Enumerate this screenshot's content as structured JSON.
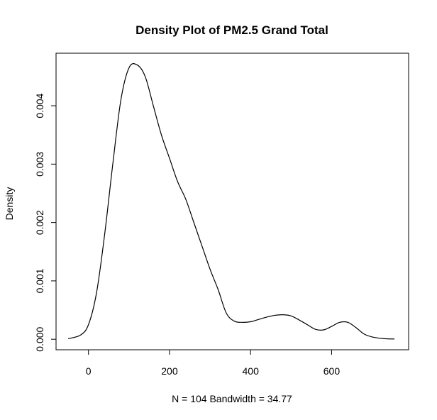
{
  "chart_data": {
    "type": "line",
    "title": "Density Plot of PM2.5 Grand Total",
    "xlabel": "N = 104   Bandwidth = 34.77",
    "ylabel": "Density",
    "xlim": [
      -80,
      790
    ],
    "ylim": [
      -0.00018,
      0.0049
    ],
    "x_ticks": [
      0,
      200,
      400,
      600
    ],
    "x_tick_labels": [
      "0",
      "200",
      "400",
      "600"
    ],
    "y_ticks": [
      0.0,
      0.001,
      0.002,
      0.003,
      0.004
    ],
    "y_tick_labels": [
      "0.000",
      "0.001",
      "0.002",
      "0.003",
      "0.004"
    ],
    "grid": false,
    "series": [
      {
        "x": [
          -50,
          -20,
          0,
          20,
          40,
          60,
          80,
          100,
          120,
          140,
          160,
          180,
          200,
          220,
          240,
          260,
          280,
          300,
          320,
          340,
          360,
          380,
          400,
          420,
          440,
          460,
          480,
          500,
          520,
          540,
          560,
          580,
          600,
          620,
          640,
          660,
          680,
          700,
          730,
          755
        ],
        "y": [
          1e-05,
          7e-05,
          0.00025,
          0.0008,
          0.0018,
          0.003,
          0.0041,
          0.00465,
          0.0047,
          0.0045,
          0.004,
          0.0035,
          0.0031,
          0.0027,
          0.0024,
          0.002,
          0.0016,
          0.0012,
          0.00085,
          0.00045,
          0.00031,
          0.00029,
          0.0003,
          0.00034,
          0.00038,
          0.00041,
          0.00042,
          0.0004,
          0.00033,
          0.00025,
          0.00017,
          0.00016,
          0.00022,
          0.00029,
          0.00029,
          0.0002,
          9e-05,
          4e-05,
          1e-05,
          5e-06
        ]
      }
    ]
  }
}
